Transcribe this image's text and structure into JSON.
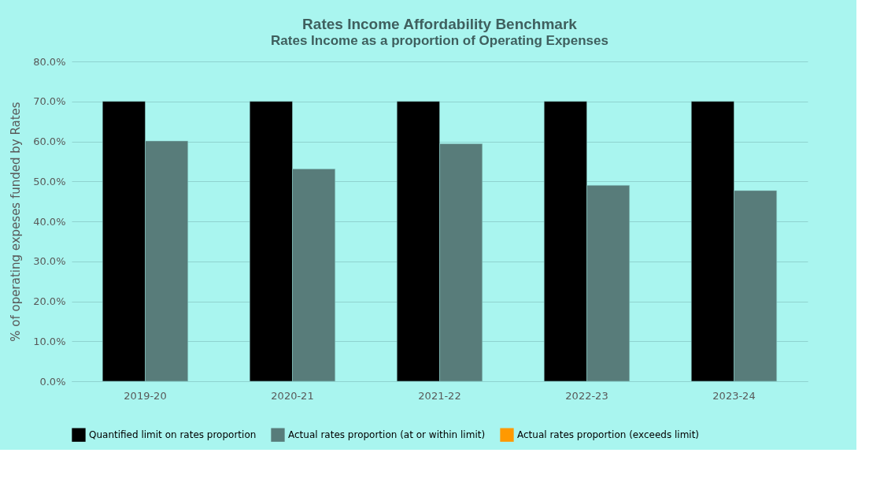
{
  "chart_data": {
    "type": "bar",
    "title": "Rates Income Affordability Benchmark",
    "subtitle": "Rates Income as a proportion of Operating Expenses",
    "ylabel": "% of operating expeses funded by Rates",
    "categories": [
      "2019-20",
      "2020-21",
      "2021-22",
      "2022-23",
      "2023-24"
    ],
    "series": [
      {
        "name": "Quantified limit on rates proportion",
        "color": "#000000",
        "values": [
          70,
          70,
          70,
          70,
          70
        ]
      },
      {
        "name": "Actual rates proportion (at or within limit)",
        "color": "#587c7a",
        "values": [
          60.1,
          53.1,
          59.4,
          49.0,
          47.7
        ]
      },
      {
        "name": "Actual rates proportion (exceeds limit)",
        "color": "#ff9900",
        "values": [
          null,
          null,
          null,
          null,
          null
        ]
      }
    ],
    "ylim": [
      0,
      80
    ],
    "yticks": [
      {
        "value": 0,
        "label": "0.0%"
      },
      {
        "value": 10,
        "label": "10.0%"
      },
      {
        "value": 20,
        "label": "20.0%"
      },
      {
        "value": 30,
        "label": "30.0%"
      },
      {
        "value": 40,
        "label": "40.0%"
      },
      {
        "value": 50,
        "label": "50.0%"
      },
      {
        "value": 60,
        "label": "60.0%"
      },
      {
        "value": 70,
        "label": "70.0%"
      },
      {
        "value": 80,
        "label": "80.0%"
      }
    ],
    "grid": "y",
    "legend": "bottom"
  }
}
